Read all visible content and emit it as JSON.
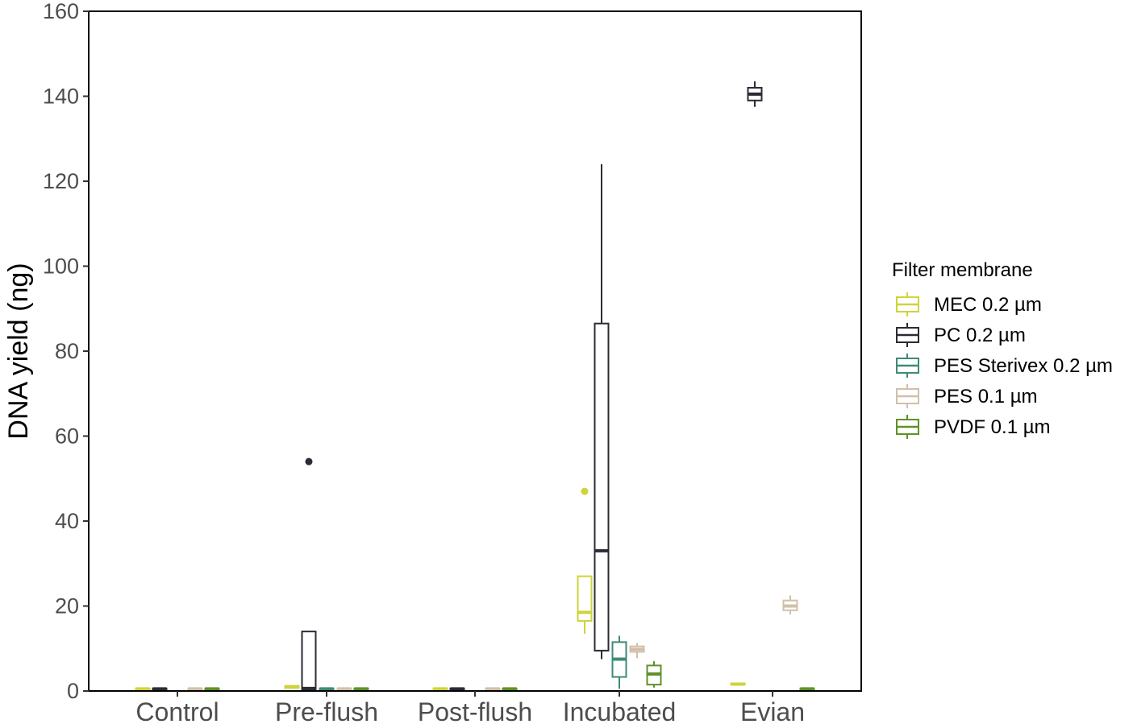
{
  "chart_data": {
    "type": "boxplot",
    "title": "",
    "xlabel": "",
    "ylabel": "DNA yield (ng)",
    "ylim": [
      0,
      160
    ],
    "yticks": [
      0,
      20,
      40,
      60,
      80,
      100,
      120,
      140,
      160
    ],
    "grid": false,
    "legend_position": "right",
    "categories": [
      "Control",
      "Pre-flush",
      "Post-flush",
      "Incubated",
      "Evian"
    ],
    "legend": {
      "title": "Filter membrane",
      "entries": [
        {
          "name": "MEC 0.2 µm",
          "color": "#cfd33a"
        },
        {
          "name": "PC 0.2 µm",
          "color": "#2b2b36"
        },
        {
          "name": "PES Sterivex 0.2 µm",
          "color": "#3f8a76"
        },
        {
          "name": "PES 0.1 µm",
          "color": "#d2bfaa"
        },
        {
          "name": "PVDF 0.1 µm",
          "color": "#5f9128"
        }
      ]
    },
    "series": [
      {
        "name": "MEC 0.2 µm",
        "boxes": [
          {
            "category": "Control",
            "min": 0.3,
            "q1": 0.4,
            "median": 0.5,
            "q3": 0.6,
            "max": 0.7
          },
          {
            "category": "Pre-flush",
            "min": 0.5,
            "q1": 0.7,
            "median": 1.0,
            "q3": 1.2,
            "max": 1.4
          },
          {
            "category": "Post-flush",
            "min": 0.3,
            "q1": 0.4,
            "median": 0.5,
            "q3": 0.6,
            "max": 0.7
          },
          {
            "category": "Incubated",
            "min": 13.5,
            "q1": 16.5,
            "median": 18.5,
            "q3": 27,
            "max": 27,
            "outliers": [
              47
            ]
          },
          {
            "category": "Evian",
            "min": 1.3,
            "q1": 1.5,
            "median": 1.6,
            "q3": 1.8,
            "max": 2.0
          }
        ]
      },
      {
        "name": "PC 0.2 µm",
        "boxes": [
          {
            "category": "Control",
            "min": 0.3,
            "q1": 0.4,
            "median": 0.5,
            "q3": 0.6,
            "max": 0.7
          },
          {
            "category": "Pre-flush",
            "min": 0.3,
            "q1": 0.4,
            "median": 0.6,
            "q3": 14,
            "max": 14,
            "outliers": [
              54
            ]
          },
          {
            "category": "Post-flush",
            "min": 0.3,
            "q1": 0.4,
            "median": 0.5,
            "q3": 0.6,
            "max": 0.7
          },
          {
            "category": "Incubated",
            "min": 7.5,
            "q1": 9.5,
            "median": 33,
            "q3": 86.5,
            "max": 124
          },
          {
            "category": "Evian",
            "min": 137.5,
            "q1": 139,
            "median": 140.5,
            "q3": 142,
            "max": 143.5
          }
        ]
      },
      {
        "name": "PES Sterivex 0.2 µm",
        "boxes": [
          {
            "category": "Pre-flush",
            "min": 0.3,
            "q1": 0.4,
            "median": 0.5,
            "q3": 0.6,
            "max": 0.7
          },
          {
            "category": "Incubated",
            "min": 0.5,
            "q1": 3.3,
            "median": 7.5,
            "q3": 11.5,
            "max": 13
          }
        ]
      },
      {
        "name": "PES 0.1 µm",
        "boxes": [
          {
            "category": "Control",
            "min": 0.3,
            "q1": 0.4,
            "median": 0.5,
            "q3": 0.6,
            "max": 0.7
          },
          {
            "category": "Pre-flush",
            "min": 0.3,
            "q1": 0.4,
            "median": 0.5,
            "q3": 0.6,
            "max": 0.7
          },
          {
            "category": "Post-flush",
            "min": 0.3,
            "q1": 0.4,
            "median": 0.5,
            "q3": 0.6,
            "max": 0.7
          },
          {
            "category": "Incubated",
            "min": 7.7,
            "q1": 9.2,
            "median": 9.8,
            "q3": 10.5,
            "max": 11.3
          },
          {
            "category": "Evian",
            "min": 18,
            "q1": 19,
            "median": 20,
            "q3": 21.3,
            "max": 22.5
          }
        ]
      },
      {
        "name": "PVDF 0.1 µm",
        "boxes": [
          {
            "category": "Control",
            "min": 0.3,
            "q1": 0.4,
            "median": 0.5,
            "q3": 0.6,
            "max": 0.7
          },
          {
            "category": "Pre-flush",
            "min": 0.3,
            "q1": 0.4,
            "median": 0.5,
            "q3": 0.6,
            "max": 0.7
          },
          {
            "category": "Post-flush",
            "min": 0.3,
            "q1": 0.4,
            "median": 0.5,
            "q3": 0.6,
            "max": 0.7
          },
          {
            "category": "Incubated",
            "min": 0.8,
            "q1": 1.5,
            "median": 4,
            "q3": 6,
            "max": 7
          },
          {
            "category": "Evian",
            "min": 0.3,
            "q1": 0.4,
            "median": 0.5,
            "q3": 0.6,
            "max": 0.7
          }
        ]
      }
    ]
  }
}
